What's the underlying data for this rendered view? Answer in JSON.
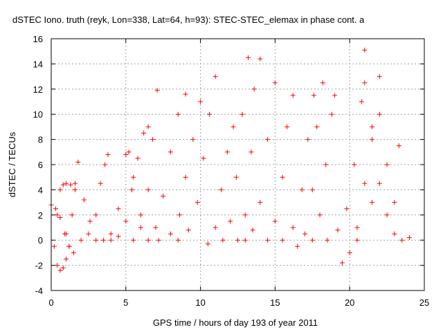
{
  "chart_data": {
    "type": "scatter",
    "title": "dSTEC Iono. truth (reyk, Lon=338, Lat=64, h=93): STEC-STEC_elemax in phase cont. a",
    "xlabel": "GPS time / hours of day 193 of year 2011",
    "ylabel": "dSTEC  / TECUs",
    "xlim": [
      0,
      25
    ],
    "ylim": [
      -4,
      16
    ],
    "xticks": [
      "0",
      "5",
      "10",
      "15",
      "20",
      "25"
    ],
    "yticks": [
      "-4",
      "-2",
      "0",
      "2",
      "4",
      "6",
      "8",
      "10",
      "12",
      "14",
      "16"
    ],
    "grid": true,
    "marker": "+",
    "color": "#ff0000",
    "series": [
      {
        "x": [
          0.0,
          0.3,
          0.6,
          0.9,
          1.2,
          1.5
        ],
        "y": [
          2.8,
          2.5,
          1.8,
          0.5,
          -0.5,
          -1.0
        ]
      },
      {
        "x": [
          0.2,
          0.4,
          0.6,
          0.8,
          1.0,
          1.2
        ],
        "y": [
          -0.5,
          -2.0,
          -2.4,
          -2.2,
          -1.5,
          -0.5
        ]
      },
      {
        "x": [
          0.4,
          0.6,
          0.8,
          1.0,
          1.3,
          1.6
        ],
        "y": [
          2.0,
          4.0,
          4.4,
          4.5,
          4.4,
          4.0
        ]
      },
      {
        "x": [
          1.0,
          1.4,
          1.6,
          1.8,
          2.2,
          2.6,
          3.0
        ],
        "y": [
          0.5,
          2.0,
          4.5,
          6.2,
          3.2,
          1.5,
          0.0
        ]
      },
      {
        "x": [
          2.0,
          2.5,
          3.0,
          3.3,
          3.6,
          3.8
        ],
        "y": [
          0.0,
          0.5,
          2.0,
          4.5,
          6.0,
          6.8
        ]
      },
      {
        "x": [
          3.5,
          4.0,
          4.5,
          5.0,
          5.2,
          5.5,
          6.0
        ],
        "y": [
          0.0,
          0.5,
          2.5,
          6.8,
          7.0,
          5.0,
          2.0
        ]
      },
      {
        "x": [
          4.0,
          4.5,
          5.0,
          5.4,
          5.8,
          6.2,
          6.5
        ],
        "y": [
          0.0,
          0.3,
          1.5,
          4.0,
          6.5,
          8.5,
          9.0
        ]
      },
      {
        "x": [
          5.5,
          6.0,
          6.5,
          6.8,
          7.1
        ],
        "y": [
          0.0,
          1.0,
          4.0,
          8.0,
          11.9
        ]
      },
      {
        "x": [
          6.5,
          7.0,
          7.5,
          8.0,
          8.5,
          9.0
        ],
        "y": [
          0.0,
          1.0,
          3.5,
          7.0,
          10.0,
          11.6
        ]
      },
      {
        "x": [
          7.2,
          8.0,
          8.6,
          9.0,
          9.5,
          10.0
        ],
        "y": [
          0.0,
          0.5,
          2.0,
          5.0,
          8.0,
          11.0
        ]
      },
      {
        "x": [
          8.5,
          9.2,
          9.8,
          10.2,
          10.6,
          11.0
        ],
        "y": [
          0.0,
          0.8,
          3.0,
          6.5,
          10.0,
          13.0
        ]
      },
      {
        "x": [
          10.5,
          11.0,
          11.4,
          11.8,
          12.2
        ],
        "y": [
          -0.3,
          1.0,
          4.0,
          7.0,
          9.0
        ]
      },
      {
        "x": [
          11.5,
          12.0,
          12.4,
          12.8,
          13.2
        ],
        "y": [
          0.0,
          1.5,
          5.0,
          10.0,
          14.5
        ]
      },
      {
        "x": [
          12.5,
          13.0,
          13.4,
          13.6,
          14.0
        ],
        "y": [
          0.0,
          2.0,
          7.0,
          12.0,
          14.4
        ]
      },
      {
        "x": [
          13.0,
          13.5,
          14.0,
          14.5,
          15.0
        ],
        "y": [
          0.0,
          0.8,
          3.0,
          8.0,
          12.5
        ]
      },
      {
        "x": [
          14.5,
          15.0,
          15.5,
          15.8,
          16.2
        ],
        "y": [
          0.0,
          1.5,
          5.0,
          9.0,
          11.5
        ]
      },
      {
        "x": [
          15.5,
          16.2,
          16.8,
          17.2,
          17.6
        ],
        "y": [
          0.0,
          1.0,
          4.0,
          8.0,
          11.5
        ]
      },
      {
        "x": [
          16.5,
          17.0,
          17.5,
          17.8,
          18.2
        ],
        "y": [
          -0.5,
          0.5,
          4.0,
          9.0,
          12.5
        ]
      },
      {
        "x": [
          17.5,
          18.0,
          18.4,
          18.8,
          19.0
        ],
        "y": [
          0.0,
          2.0,
          6.0,
          10.0,
          11.5
        ]
      },
      {
        "x": [
          18.5,
          19.2,
          19.8,
          20.3,
          20.8,
          21.0
        ],
        "y": [
          0.0,
          0.8,
          2.5,
          6.0,
          11.0,
          15.1
        ]
      },
      {
        "x": [
          19.5,
          20.0,
          20.5,
          21.0,
          21.5,
          22.0
        ],
        "y": [
          -1.8,
          -1.0,
          1.0,
          4.5,
          9.0,
          13.0
        ]
      },
      {
        "x": [
          20.5,
          21.5,
          22.0,
          22.5,
          23.0,
          23.3
        ],
        "y": [
          0.0,
          3.0,
          10.0,
          6.0,
          3.0,
          7.5
        ]
      },
      {
        "x": [
          21.0,
          21.5,
          22.0,
          22.5,
          23.0,
          23.5,
          24.0
        ],
        "y": [
          12.5,
          8.0,
          4.5,
          2.0,
          0.5,
          0.0,
          0.2
        ]
      }
    ]
  }
}
